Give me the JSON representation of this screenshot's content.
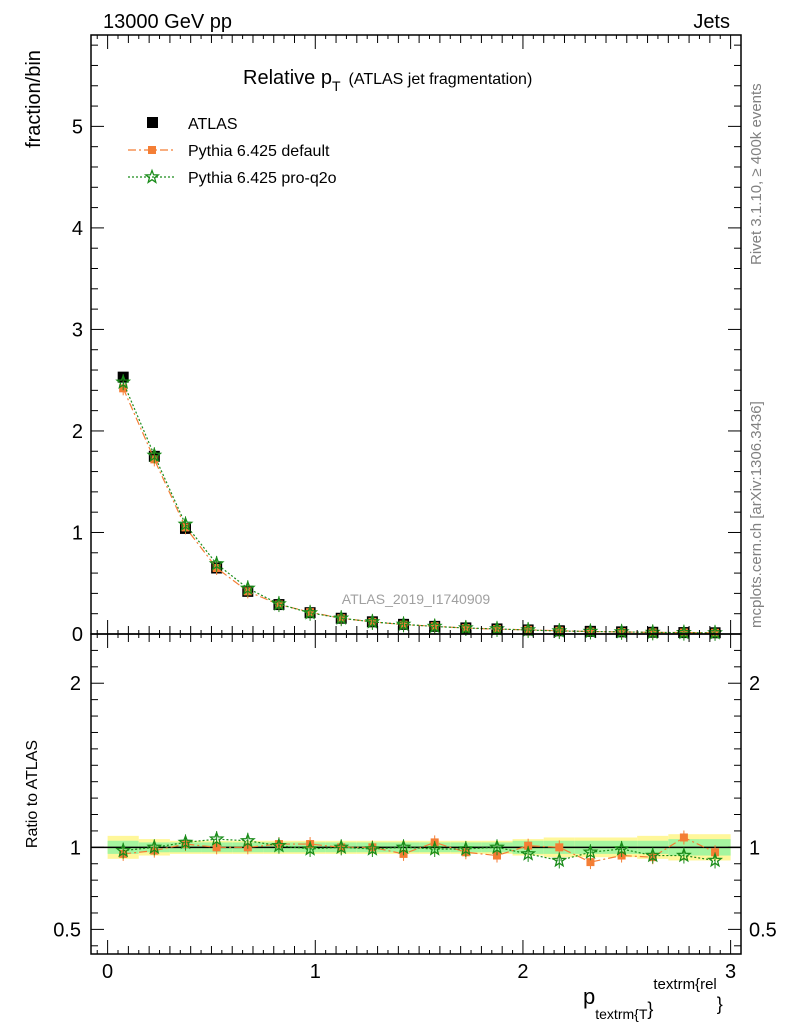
{
  "header": {
    "left": "13000 GeV pp",
    "right": "Jets"
  },
  "side_labels": {
    "rivet": "Rivet 3.1.10, ≥ 400k events",
    "mcplots": "mcplots.cern.ch [arXiv:1306.3436]"
  },
  "watermark": "ATLAS_2019_I1740909",
  "chart_data": [
    {
      "type": "scatter",
      "title_main": "Relative p",
      "title_sub": "T",
      "title_rest": "(ATLAS jet fragmentation)",
      "ylabel": "fraction/bin",
      "xlim": [
        -0.08,
        3.05
      ],
      "ylim": [
        0,
        5.9
      ],
      "yticks": [
        0,
        1,
        2,
        3,
        4,
        5
      ],
      "legend_position": "top-left",
      "x": [
        0.075,
        0.225,
        0.375,
        0.525,
        0.675,
        0.825,
        0.975,
        1.125,
        1.275,
        1.425,
        1.575,
        1.725,
        1.875,
        2.025,
        2.175,
        2.325,
        2.475,
        2.625,
        2.775,
        2.925
      ],
      "series": [
        {
          "name": "ATLAS",
          "color": "#000000",
          "marker": "square",
          "values": [
            2.53,
            1.75,
            1.04,
            0.65,
            0.42,
            0.29,
            0.21,
            0.155,
            0.12,
            0.095,
            0.075,
            0.06,
            0.05,
            0.04,
            0.032,
            0.026,
            0.021,
            0.017,
            0.014,
            0.012
          ]
        },
        {
          "name": "Pythia 6.425 default",
          "color": "#f47e35",
          "marker": "square-small",
          "values": [
            2.42,
            1.72,
            1.05,
            0.65,
            0.42,
            0.29,
            0.215,
            0.155,
            0.12,
            0.092,
            0.077,
            0.058,
            0.048,
            0.041,
            0.032,
            0.024,
            0.02,
            0.016,
            0.015,
            0.012
          ]
        },
        {
          "name": "Pythia 6.425 pro-q2o",
          "color": "#1a8c1a",
          "marker": "star",
          "values": [
            2.48,
            1.76,
            1.08,
            0.69,
            0.45,
            0.295,
            0.208,
            0.156,
            0.119,
            0.095,
            0.074,
            0.059,
            0.05,
            0.039,
            0.029,
            0.025,
            0.021,
            0.016,
            0.013,
            0.011
          ]
        }
      ]
    },
    {
      "type": "scatter",
      "ylabel": "Ratio to ATLAS",
      "xlabel_main": "p",
      "xlabel_sub": "textrm{T",
      "xlabel_brace": "}",
      "xlabel_sup": "textrm{rel",
      "xlabel_close": "}",
      "xlim": [
        -0.08,
        3.05
      ],
      "ylim": [
        0.35,
        2.3
      ],
      "yticks": [
        0.5,
        1,
        2
      ],
      "xticks": [
        0,
        1,
        2,
        3
      ],
      "x": [
        0.075,
        0.225,
        0.375,
        0.525,
        0.675,
        0.825,
        0.975,
        1.125,
        1.275,
        1.425,
        1.575,
        1.725,
        1.875,
        2.025,
        2.175,
        2.325,
        2.475,
        2.625,
        2.775,
        2.925
      ],
      "band_inner": [
        0.04,
        0.03,
        0.03,
        0.03,
        0.03,
        0.03,
        0.03,
        0.03,
        0.03,
        0.03,
        0.03,
        0.03,
        0.03,
        0.04,
        0.04,
        0.04,
        0.04,
        0.04,
        0.05,
        0.05
      ],
      "band_outer": [
        0.07,
        0.05,
        0.04,
        0.04,
        0.04,
        0.04,
        0.04,
        0.04,
        0.04,
        0.04,
        0.04,
        0.04,
        0.04,
        0.05,
        0.06,
        0.06,
        0.06,
        0.07,
        0.08,
        0.08
      ],
      "series": [
        {
          "name": "Pythia 6.425 default",
          "color": "#f47e35",
          "marker": "square-small",
          "values": [
            0.96,
            0.98,
            1.02,
            1.0,
            1.0,
            1.02,
            1.02,
            1.0,
            1.0,
            0.96,
            1.03,
            0.97,
            0.95,
            1.01,
            1.0,
            0.91,
            0.95,
            0.94,
            1.06,
            0.97
          ]
        },
        {
          "name": "Pythia 6.425 pro-q2o",
          "color": "#1a8c1a",
          "marker": "star",
          "values": [
            0.98,
            1.0,
            1.03,
            1.05,
            1.04,
            1.01,
            0.99,
            1.0,
            0.99,
            1.0,
            0.99,
            0.99,
            1.0,
            0.96,
            0.92,
            0.97,
            0.99,
            0.95,
            0.95,
            0.92
          ]
        }
      ]
    }
  ]
}
